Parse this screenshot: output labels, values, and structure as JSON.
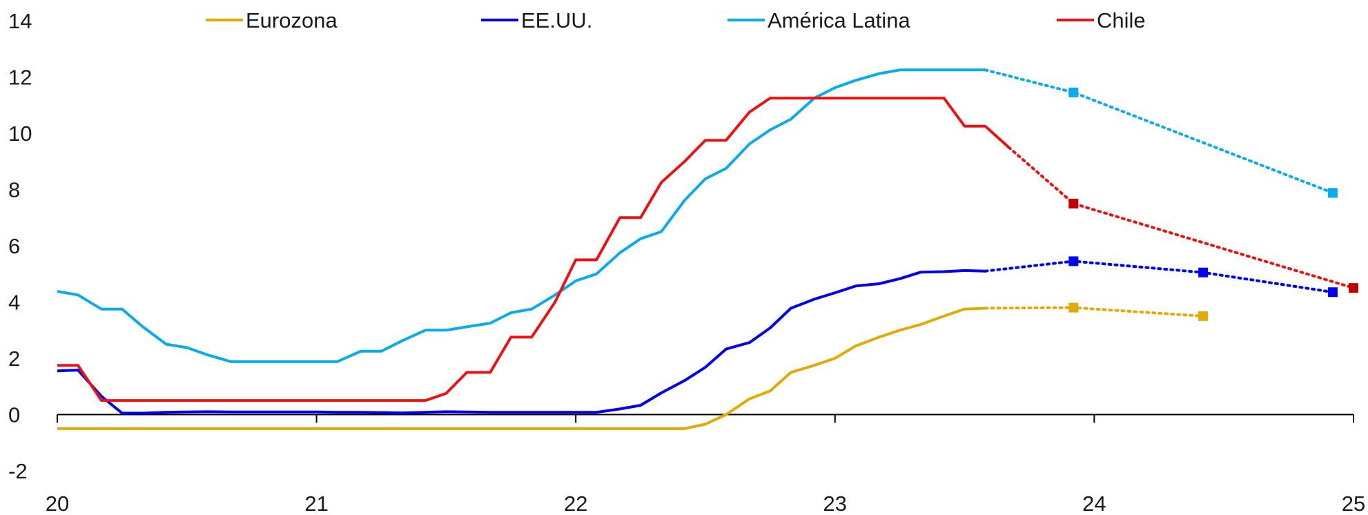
{
  "chart_data": {
    "type": "line",
    "title": "",
    "xlabel": "",
    "ylabel": "",
    "xlim": [
      20,
      25
    ],
    "ylim": [
      -2,
      14
    ],
    "x_ticks": [
      20,
      21,
      22,
      23,
      24,
      25
    ],
    "x_tick_labels": [
      "20",
      "21",
      "22",
      "23",
      "24",
      "25"
    ],
    "y_ticks": [
      -2,
      0,
      2,
      4,
      6,
      8,
      10,
      12,
      14
    ],
    "y_tick_labels": [
      "-2",
      "0",
      "2",
      "4",
      "6",
      "8",
      "10",
      "12",
      "14"
    ],
    "grid": false,
    "legend_position": "top",
    "series": [
      {
        "name": "Eurozona",
        "color": "#E2AA06",
        "x": [
          20.0,
          20.08,
          20.17,
          20.25,
          20.33,
          20.42,
          20.5,
          20.58,
          20.67,
          20.75,
          20.83,
          20.92,
          21.0,
          21.08,
          21.17,
          21.25,
          21.33,
          21.42,
          21.5,
          21.58,
          21.67,
          21.75,
          21.83,
          21.92,
          22.0,
          22.08,
          22.17,
          22.25,
          22.33,
          22.42,
          22.5,
          22.58,
          22.67,
          22.75,
          22.83,
          22.92,
          23.0,
          23.08,
          23.17,
          23.25,
          23.33,
          23.42,
          23.5,
          23.58
        ],
        "values": [
          -0.5,
          -0.5,
          -0.5,
          -0.5,
          -0.5,
          -0.5,
          -0.5,
          -0.5,
          -0.5,
          -0.5,
          -0.5,
          -0.5,
          -0.5,
          -0.5,
          -0.5,
          -0.5,
          -0.5,
          -0.5,
          -0.5,
          -0.5,
          -0.5,
          -0.5,
          -0.5,
          -0.5,
          -0.5,
          -0.5,
          -0.5,
          -0.5,
          -0.5,
          -0.5,
          -0.34,
          0.0,
          0.56,
          0.84,
          1.5,
          1.75,
          2.0,
          2.44,
          2.75,
          3.0,
          3.2,
          3.5,
          3.75,
          3.78
        ],
        "projection_x": [
          23.58,
          23.92,
          24.42
        ],
        "projection_values": [
          3.78,
          3.8,
          3.5
        ]
      },
      {
        "name": "EE.UU.",
        "color": "#0000EE",
        "x": [
          20.0,
          20.08,
          20.17,
          20.25,
          20.33,
          20.42,
          20.5,
          20.58,
          20.67,
          20.75,
          20.83,
          20.92,
          21.0,
          21.08,
          21.17,
          21.25,
          21.33,
          21.42,
          21.5,
          21.58,
          21.67,
          21.75,
          21.83,
          21.92,
          22.0,
          22.08,
          22.17,
          22.25,
          22.33,
          22.42,
          22.5,
          22.58,
          22.67,
          22.75,
          22.83,
          22.92,
          23.0,
          23.08,
          23.17,
          23.25,
          23.33,
          23.42,
          23.5,
          23.58
        ],
        "values": [
          1.55,
          1.58,
          0.65,
          0.05,
          0.05,
          0.08,
          0.09,
          0.1,
          0.09,
          0.09,
          0.09,
          0.09,
          0.09,
          0.08,
          0.08,
          0.07,
          0.06,
          0.08,
          0.1,
          0.09,
          0.08,
          0.08,
          0.08,
          0.08,
          0.08,
          0.08,
          0.2,
          0.33,
          0.77,
          1.21,
          1.68,
          2.33,
          2.56,
          3.08,
          3.78,
          4.1,
          4.33,
          4.57,
          4.65,
          4.83,
          5.06,
          5.08,
          5.12,
          5.1
        ],
        "projection_x": [
          23.58,
          23.92,
          24.42,
          24.92
        ],
        "projection_values": [
          5.1,
          5.45,
          5.05,
          4.35
        ]
      },
      {
        "name": "América Latina",
        "color": "#09ABEB",
        "x": [
          20.0,
          20.08,
          20.17,
          20.25,
          20.33,
          20.42,
          20.5,
          20.58,
          20.67,
          20.75,
          20.83,
          20.92,
          21.0,
          21.08,
          21.17,
          21.25,
          21.33,
          21.42,
          21.5,
          21.58,
          21.67,
          21.75,
          21.83,
          21.92,
          22.0,
          22.08,
          22.17,
          22.25,
          22.33,
          22.42,
          22.5,
          22.58,
          22.67,
          22.75,
          22.83,
          22.92,
          23.0,
          23.08,
          23.17,
          23.25,
          23.33,
          23.42,
          23.5,
          23.58
        ],
        "values": [
          4.38,
          4.25,
          3.75,
          3.75,
          3.12,
          2.5,
          2.38,
          2.12,
          1.88,
          1.88,
          1.88,
          1.88,
          1.88,
          1.88,
          2.25,
          2.25,
          2.62,
          3.0,
          3.0,
          3.12,
          3.25,
          3.62,
          3.75,
          4.25,
          4.75,
          5.0,
          5.75,
          6.25,
          6.5,
          7.62,
          8.38,
          8.75,
          9.62,
          10.12,
          10.5,
          11.25,
          11.62,
          11.88,
          12.12,
          12.25,
          12.25,
          12.25,
          12.25,
          12.25
        ],
        "projection_x": [
          23.58,
          23.92,
          24.92
        ],
        "projection_values": [
          12.25,
          11.45,
          7.88
        ]
      },
      {
        "name": "Chile",
        "color": "#EE1111",
        "x": [
          20.0,
          20.08,
          20.17,
          20.25,
          20.33,
          20.42,
          20.5,
          20.58,
          20.67,
          20.75,
          20.83,
          20.92,
          21.0,
          21.08,
          21.17,
          21.25,
          21.33,
          21.42,
          21.5,
          21.58,
          21.67,
          21.75,
          21.83,
          21.92,
          22.0,
          22.08,
          22.17,
          22.25,
          22.33,
          22.42,
          22.5,
          22.58,
          22.67,
          22.75,
          22.83,
          22.92,
          23.0,
          23.08,
          23.17,
          23.25,
          23.33,
          23.42,
          23.5,
          23.58,
          23.67
        ],
        "values": [
          1.75,
          1.75,
          0.5,
          0.5,
          0.5,
          0.5,
          0.5,
          0.5,
          0.5,
          0.5,
          0.5,
          0.5,
          0.5,
          0.5,
          0.5,
          0.5,
          0.5,
          0.5,
          0.75,
          1.5,
          1.5,
          2.75,
          2.75,
          4.0,
          5.5,
          5.5,
          7.0,
          7.0,
          8.25,
          9.0,
          9.75,
          9.75,
          10.75,
          11.25,
          11.25,
          11.25,
          11.25,
          11.25,
          11.25,
          11.25,
          11.25,
          11.25,
          10.25,
          10.25,
          9.5
        ],
        "projection_x": [
          23.67,
          23.92,
          25.0
        ],
        "projection_values": [
          9.5,
          7.5,
          4.5
        ],
        "marker_color": "#C00000"
      }
    ]
  }
}
